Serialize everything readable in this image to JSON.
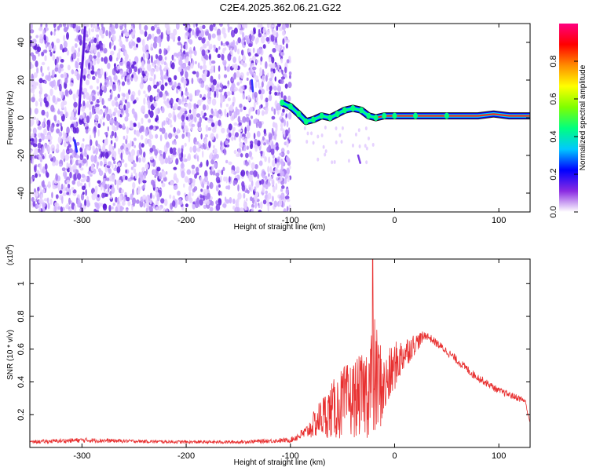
{
  "title": "C2E4.2025.362.06.21.G22",
  "colors": {
    "spectro_speckle": [
      "#e6d2ff",
      "#cfb0ff",
      "#a97cf2",
      "#7d3fe6",
      "#5a18d8"
    ],
    "snr_line": "#e83030",
    "colorbar": [
      "#ffffff",
      "#8a2be2",
      "#0000ff",
      "#00c8ff",
      "#00ff80",
      "#7fff00",
      "#ffff00",
      "#ff8c00",
      "#ff0000",
      "#ff0080"
    ]
  },
  "chart_data": [
    {
      "type": "heatmap",
      "name": "spectrogram",
      "xlabel": "Height of straight line (km)",
      "ylabel": "Frequency (Hz)",
      "xlim": [
        -350,
        130
      ],
      "ylim": [
        -50,
        50
      ],
      "xticks": [
        -300,
        -200,
        -100,
        0,
        100
      ],
      "yticks": [
        -40,
        -20,
        0,
        20,
        40
      ],
      "colorbar": {
        "label": "Normalized spectral amplitude",
        "range": [
          0,
          1
        ],
        "ticks": [
          "0.0",
          "0.2",
          "0.4",
          "0.6",
          "0.8"
        ]
      },
      "signal_track": [
        {
          "x": -108,
          "y": 8
        },
        {
          "x": -100,
          "y": 6
        },
        {
          "x": -92,
          "y": 2
        },
        {
          "x": -85,
          "y": -2
        },
        {
          "x": -78,
          "y": -1
        },
        {
          "x": -70,
          "y": 1
        },
        {
          "x": -62,
          "y": 0
        },
        {
          "x": -55,
          "y": 2
        },
        {
          "x": -48,
          "y": 4
        },
        {
          "x": -40,
          "y": 5
        },
        {
          "x": -32,
          "y": 4
        },
        {
          "x": -25,
          "y": 1
        },
        {
          "x": -18,
          "y": 0
        },
        {
          "x": -10,
          "y": 1
        },
        {
          "x": 0,
          "y": 1
        },
        {
          "x": 20,
          "y": 1
        },
        {
          "x": 50,
          "y": 1
        },
        {
          "x": 80,
          "y": 1
        },
        {
          "x": 95,
          "y": 2
        },
        {
          "x": 110,
          "y": 1
        },
        {
          "x": 130,
          "y": 1
        }
      ],
      "noise_region": {
        "x_start": -350,
        "x_end": -100
      }
    },
    {
      "type": "line",
      "name": "snr",
      "xlabel": "Height of straight line (km)",
      "ylabel": "SNR (10 * v/v)",
      "scale_label": "(x10",
      "scale_exp": "4",
      "xlim": [
        -350,
        130
      ],
      "ylim": [
        0,
        1.15
      ],
      "xticks": [
        -300,
        -200,
        -100,
        0,
        100
      ],
      "yticks": [
        "0.2",
        "0.4",
        "0.6",
        "0.8",
        "1"
      ],
      "envelope": [
        {
          "x": -350,
          "base": 0.03,
          "amp": 0.02
        },
        {
          "x": -300,
          "base": 0.04,
          "amp": 0.03
        },
        {
          "x": -250,
          "base": 0.035,
          "amp": 0.02
        },
        {
          "x": -200,
          "base": 0.03,
          "amp": 0.02
        },
        {
          "x": -150,
          "base": 0.03,
          "amp": 0.02
        },
        {
          "x": -100,
          "base": 0.04,
          "amp": 0.03
        },
        {
          "x": -85,
          "base": 0.08,
          "amp": 0.08
        },
        {
          "x": -70,
          "base": 0.15,
          "amp": 0.25
        },
        {
          "x": -50,
          "base": 0.2,
          "amp": 0.45
        },
        {
          "x": -30,
          "base": 0.25,
          "amp": 0.5
        },
        {
          "x": -20,
          "base": 0.3,
          "amp": 0.8
        },
        {
          "x": -10,
          "base": 0.3,
          "amp": 0.4
        },
        {
          "x": 0,
          "base": 0.45,
          "amp": 0.3
        },
        {
          "x": 10,
          "base": 0.55,
          "amp": 0.2
        },
        {
          "x": 30,
          "base": 0.68,
          "amp": 0.05
        },
        {
          "x": 50,
          "base": 0.58,
          "amp": 0.05
        },
        {
          "x": 75,
          "base": 0.44,
          "amp": 0.05
        },
        {
          "x": 100,
          "base": 0.34,
          "amp": 0.04
        },
        {
          "x": 125,
          "base": 0.28,
          "amp": 0.04
        },
        {
          "x": 130,
          "base": 0.15,
          "amp": 0.02
        }
      ],
      "peak": {
        "x": -21,
        "y": 1.15
      }
    }
  ]
}
